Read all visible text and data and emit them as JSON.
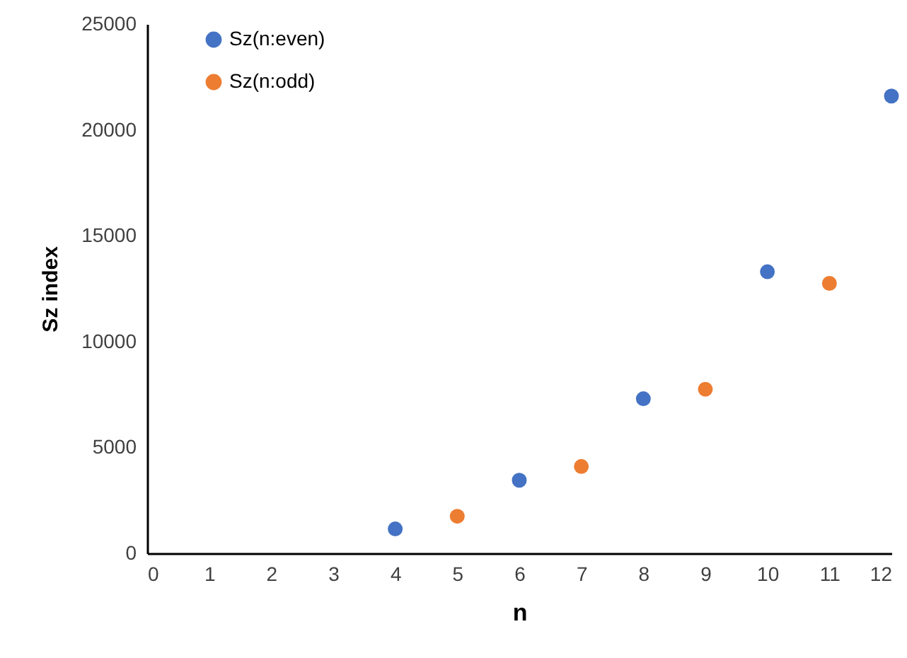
{
  "chart_data": {
    "type": "scatter",
    "xlabel": "n",
    "ylabel": "Sz index",
    "xlim": [
      0,
      12
    ],
    "xticks": [
      0,
      1,
      2,
      3,
      4,
      5,
      6,
      7,
      8,
      9,
      10,
      11,
      12
    ],
    "ylim": [
      0,
      25000
    ],
    "yticks": [
      0,
      5000,
      10000,
      15000,
      20000,
      25000
    ],
    "grid": false,
    "legend": "top left",
    "marker": "circle",
    "series": [
      {
        "name": "Sz(n:even)",
        "color": "#4472c4",
        "x": [
          4,
          6,
          8,
          10,
          12
        ],
        "values": [
          1150,
          3450,
          7300,
          13300,
          21600
        ]
      },
      {
        "name": "Sz(n:odd)",
        "color": "#ed7d31",
        "x": [
          5,
          7,
          9,
          11
        ],
        "values": [
          1750,
          4100,
          7750,
          12750
        ]
      }
    ]
  }
}
